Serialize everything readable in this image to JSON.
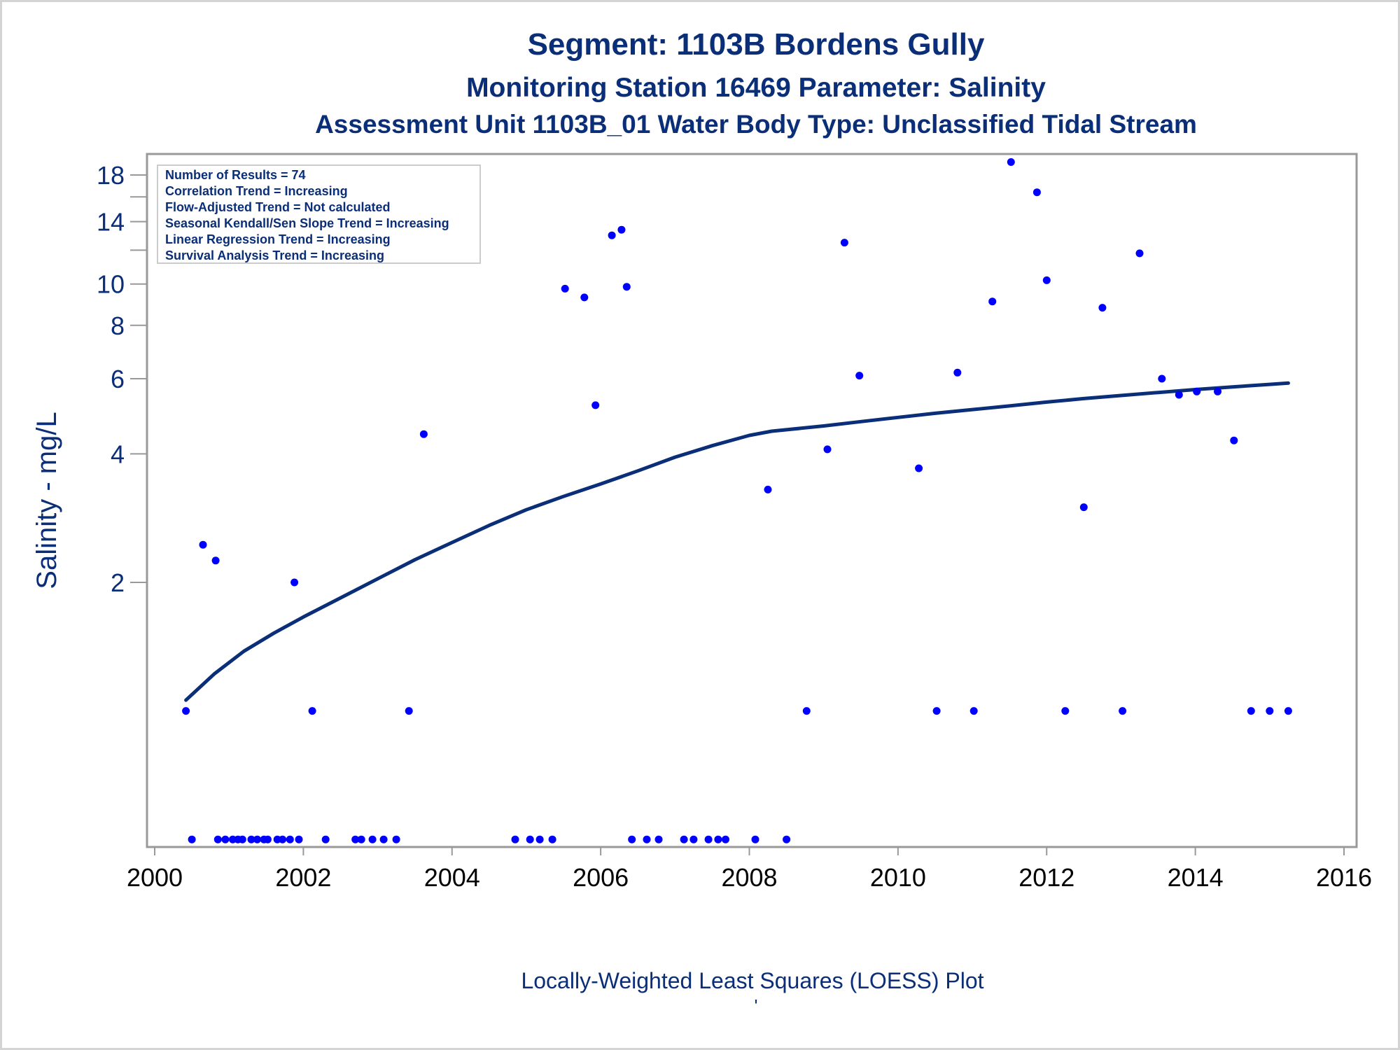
{
  "chart_data": {
    "type": "scatter",
    "title": "Segment: 1103B  Bordens Gully",
    "subtitle": "Monitoring Station 16469 Parameter: Salinity",
    "subtitle2": "Assessment Unit 1103B_01   Water Body Type: Unclassified Tidal Stream",
    "xlabel": "Locally-Weighted Least Squares (LOESS) Plot",
    "ylabel": "Salinity - mg/L",
    "footnote": "'",
    "xlim": [
      2000,
      2016
    ],
    "xticks": [
      2000,
      2002,
      2004,
      2006,
      2008,
      2010,
      2012,
      2014,
      2016
    ],
    "yscale": "log",
    "yticks": [
      2,
      4,
      6,
      8,
      10,
      14,
      18
    ],
    "yminor": [
      12,
      16
    ],
    "stats": [
      "Number of Results = 74",
      "Correlation Trend = Increasing",
      "Flow-Adjusted Trend = Not calculated",
      "Seasonal Kendall/Sen Slope Trend = Increasing",
      "Linear Regression Trend = Increasing",
      "Survival Analysis Trend = Increasing"
    ],
    "colors": {
      "points": "#0000ff",
      "loess": "#0a2e77",
      "text": "#0a2e77",
      "axis": "#999999"
    },
    "series": [
      {
        "type": "scatter",
        "points": [
          [
            2000.42,
            1.0
          ],
          [
            2000.5,
            0.5
          ],
          [
            2000.65,
            2.45
          ],
          [
            2000.68,
            14.0
          ],
          [
            2000.82,
            2.25
          ],
          [
            2000.85,
            0.5
          ],
          [
            2000.95,
            0.5
          ],
          [
            2001.05,
            0.5
          ],
          [
            2001.12,
            0.5
          ],
          [
            2001.18,
            0.5
          ],
          [
            2001.3,
            0.5
          ],
          [
            2001.38,
            0.5
          ],
          [
            2001.47,
            0.5
          ],
          [
            2001.52,
            0.5
          ],
          [
            2001.65,
            0.5
          ],
          [
            2001.72,
            0.5
          ],
          [
            2001.82,
            0.5
          ],
          [
            2001.88,
            2.0
          ],
          [
            2001.94,
            0.5
          ],
          [
            2002.12,
            1.0
          ],
          [
            2002.3,
            0.5
          ],
          [
            2002.7,
            0.5
          ],
          [
            2002.78,
            0.5
          ],
          [
            2002.93,
            0.5
          ],
          [
            2003.08,
            0.5
          ],
          [
            2003.25,
            0.5
          ],
          [
            2003.42,
            1.0
          ],
          [
            2003.62,
            4.45
          ],
          [
            2004.85,
            0.5
          ],
          [
            2005.05,
            0.5
          ],
          [
            2005.18,
            0.5
          ],
          [
            2005.35,
            0.5
          ],
          [
            2005.52,
            9.75
          ],
          [
            2005.78,
            9.3
          ],
          [
            2005.93,
            5.2
          ],
          [
            2006.15,
            13.0
          ],
          [
            2006.28,
            13.4
          ],
          [
            2006.35,
            9.85
          ],
          [
            2006.42,
            0.5
          ],
          [
            2006.62,
            0.5
          ],
          [
            2006.78,
            0.5
          ],
          [
            2007.12,
            0.5
          ],
          [
            2007.25,
            0.5
          ],
          [
            2007.45,
            0.5
          ],
          [
            2007.58,
            0.5
          ],
          [
            2007.68,
            0.5
          ],
          [
            2008.08,
            0.5
          ],
          [
            2008.25,
            3.3
          ],
          [
            2008.5,
            0.5
          ],
          [
            2008.77,
            1.0
          ],
          [
            2009.05,
            4.1
          ],
          [
            2009.28,
            12.5
          ],
          [
            2009.48,
            6.1
          ],
          [
            2010.28,
            3.7
          ],
          [
            2010.52,
            1.0
          ],
          [
            2010.8,
            6.2
          ],
          [
            2011.02,
            1.0
          ],
          [
            2011.27,
            9.1
          ],
          [
            2011.52,
            19.3
          ],
          [
            2011.87,
            16.4
          ],
          [
            2012.0,
            10.2
          ],
          [
            2012.25,
            1.0
          ],
          [
            2012.5,
            3.0
          ],
          [
            2012.75,
            8.8
          ],
          [
            2013.02,
            1.0
          ],
          [
            2013.25,
            11.8
          ],
          [
            2013.55,
            6.0
          ],
          [
            2013.78,
            5.5
          ],
          [
            2014.02,
            5.6
          ],
          [
            2014.3,
            5.6
          ],
          [
            2014.52,
            4.3
          ],
          [
            2014.75,
            1.0
          ],
          [
            2015.0,
            1.0
          ],
          [
            2015.25,
            1.0
          ]
        ]
      },
      {
        "type": "line",
        "name": "LOESS",
        "points": [
          [
            2000.42,
            1.06
          ],
          [
            2000.8,
            1.22
          ],
          [
            2001.2,
            1.38
          ],
          [
            2001.6,
            1.52
          ],
          [
            2002.0,
            1.66
          ],
          [
            2002.5,
            1.84
          ],
          [
            2003.0,
            2.04
          ],
          [
            2003.5,
            2.26
          ],
          [
            2004.0,
            2.48
          ],
          [
            2004.5,
            2.72
          ],
          [
            2005.0,
            2.96
          ],
          [
            2005.5,
            3.18
          ],
          [
            2006.0,
            3.4
          ],
          [
            2006.5,
            3.65
          ],
          [
            2007.0,
            3.93
          ],
          [
            2007.5,
            4.18
          ],
          [
            2008.0,
            4.42
          ],
          [
            2008.3,
            4.52
          ],
          [
            2009.0,
            4.65
          ],
          [
            2009.5,
            4.76
          ],
          [
            2010.0,
            4.87
          ],
          [
            2010.5,
            4.98
          ],
          [
            2011.0,
            5.08
          ],
          [
            2011.5,
            5.18
          ],
          [
            2012.0,
            5.29
          ],
          [
            2012.5,
            5.39
          ],
          [
            2013.0,
            5.48
          ],
          [
            2013.5,
            5.57
          ],
          [
            2014.0,
            5.66
          ],
          [
            2014.5,
            5.74
          ],
          [
            2015.0,
            5.82
          ],
          [
            2015.25,
            5.86
          ]
        ]
      }
    ]
  }
}
